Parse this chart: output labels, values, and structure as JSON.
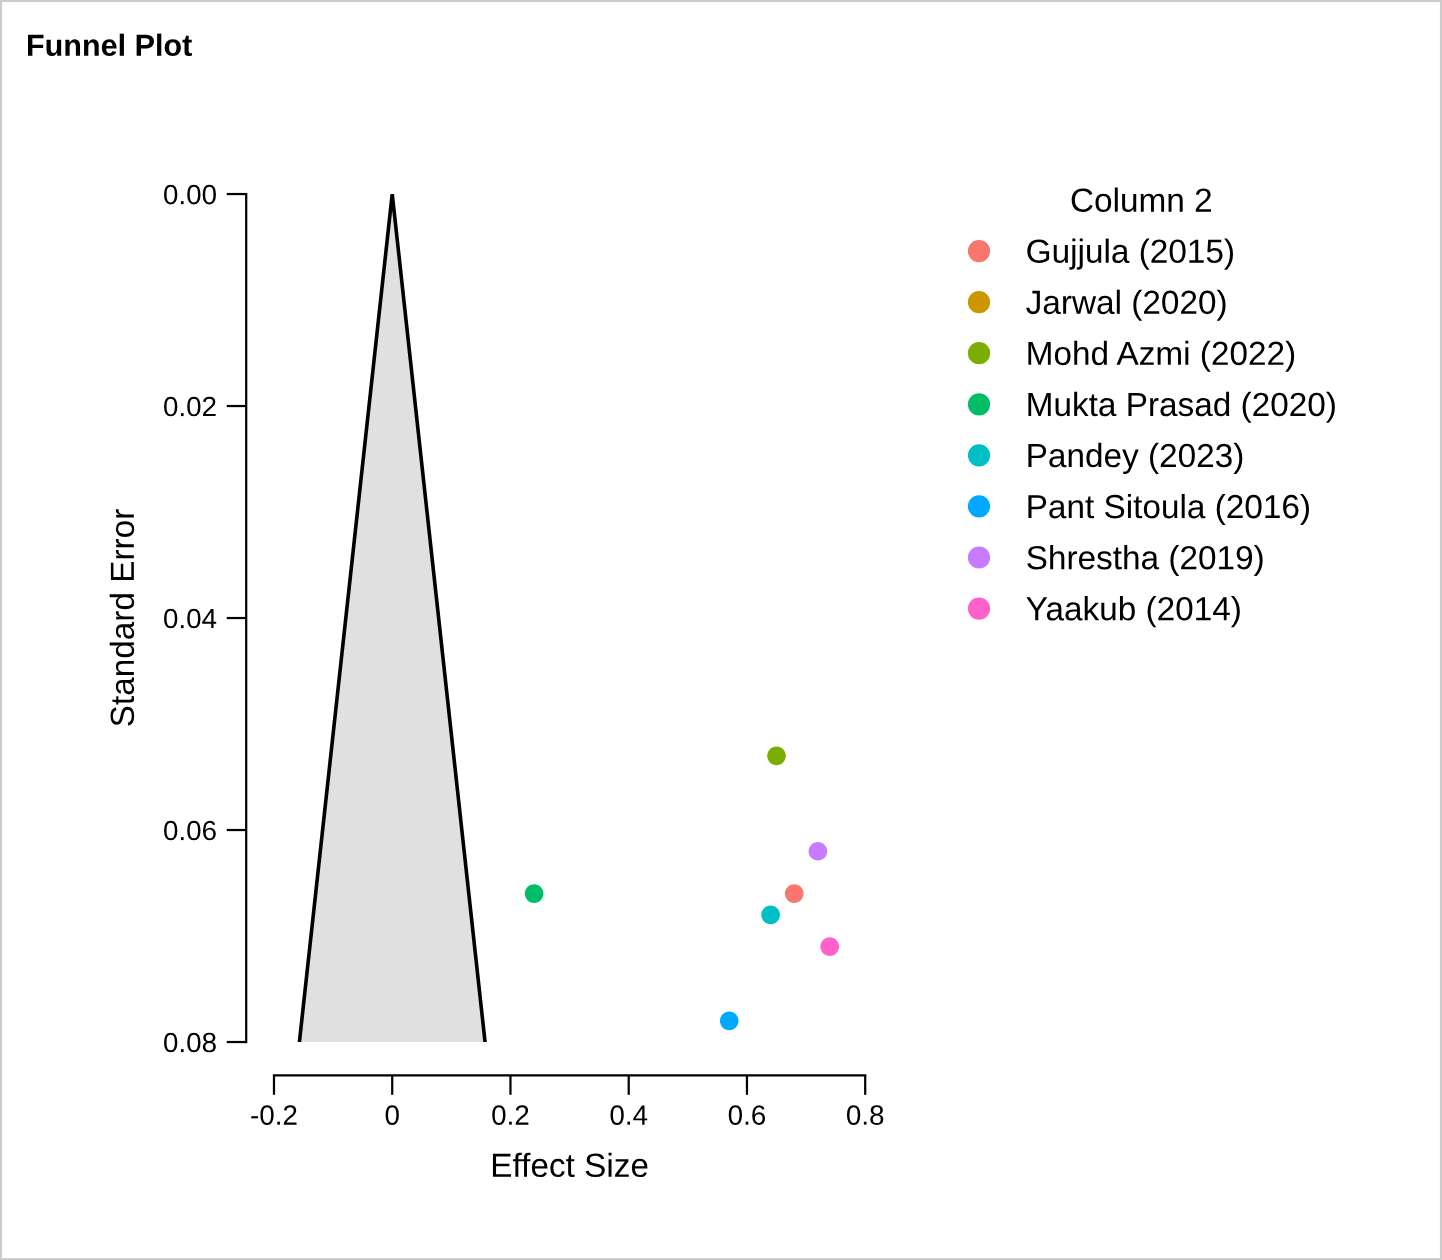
{
  "chart_data": {
    "type": "scatter",
    "title": "Funnel Plot",
    "xlabel": "Effect Size",
    "ylabel": "Standard Error",
    "legend_title": "Column 2",
    "legend": "right",
    "grid": false,
    "marker": "circle",
    "xlim": [
      -0.2,
      0.8
    ],
    "xticks": [
      -0.2,
      0,
      0.2,
      0.4,
      0.6,
      0.8
    ],
    "ylim": [
      0.08,
      0.0
    ],
    "yticks": [
      {
        "value": 0.0,
        "label": "0.00"
      },
      {
        "value": 0.02,
        "label": "0.02"
      },
      {
        "value": 0.04,
        "label": "0.04"
      },
      {
        "value": 0.06,
        "label": "0.06"
      },
      {
        "value": 0.08,
        "label": "0.08"
      }
    ],
    "series": [
      {
        "type": "area",
        "x": [
          -0.157,
          0,
          0.157
        ],
        "values": [
          0.08,
          0.0,
          0.08
        ],
        "color": "#e0e0e0",
        "marker": "none"
      },
      {
        "name": "Gujjula (2015)",
        "color": "#F8766D",
        "x": [
          0.68
        ],
        "values": [
          0.066
        ]
      },
      {
        "name": "Jarwal (2020)",
        "color": "#CD9600",
        "x": [
          null
        ],
        "values": [
          null
        ]
      },
      {
        "name": "Mohd Azmi (2022)",
        "color": "#7CAE00",
        "x": [
          0.65
        ],
        "values": [
          0.053
        ]
      },
      {
        "name": "Mukta Prasad (2020)",
        "color": "#00BE67",
        "x": [
          0.24
        ],
        "values": [
          0.066
        ]
      },
      {
        "name": "Pandey (2023)",
        "color": "#00BFC4",
        "x": [
          0.64
        ],
        "values": [
          0.068
        ]
      },
      {
        "name": "Pant Sitoula (2016)",
        "color": "#00A9FF",
        "x": [
          0.57
        ],
        "values": [
          0.078
        ]
      },
      {
        "name": "Shrestha (2019)",
        "color": "#C77CFF",
        "x": [
          0.72
        ],
        "values": [
          0.062
        ]
      },
      {
        "name": "Yaakub (2014)",
        "color": "#FF61CC",
        "x": [
          0.74
        ],
        "values": [
          0.071
        ]
      }
    ]
  }
}
